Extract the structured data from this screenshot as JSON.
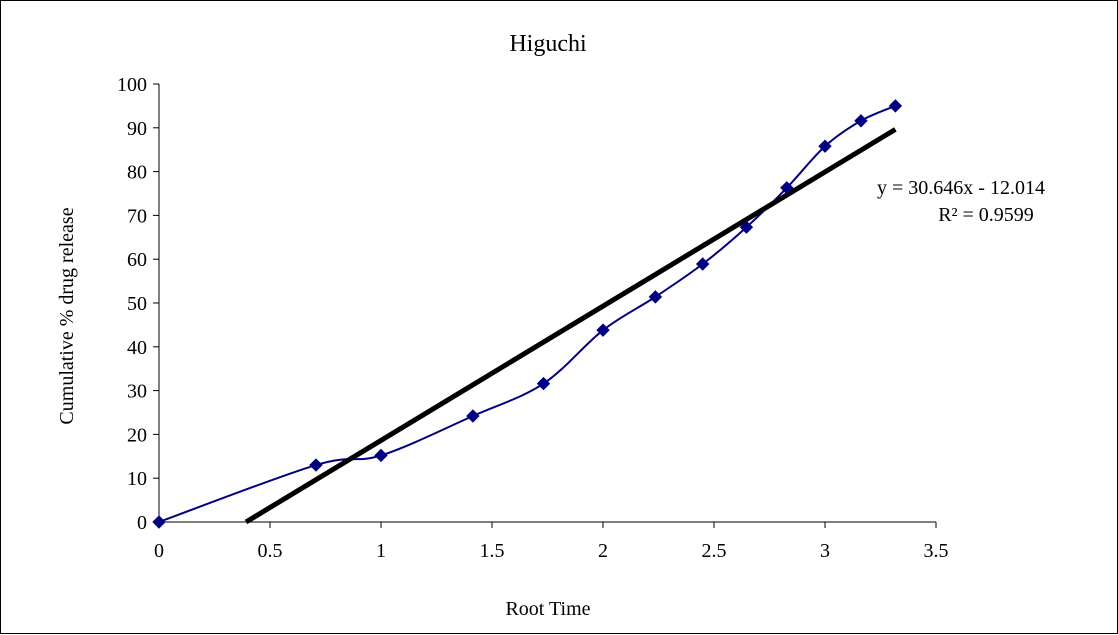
{
  "chart_data": {
    "type": "scatter",
    "title": "Higuchi",
    "xlabel": "Root Time",
    "ylabel": "Cumulative % drug release",
    "xlim": [
      0,
      3.5
    ],
    "ylim": [
      0,
      100
    ],
    "xticks": [
      0,
      0.5,
      1,
      1.5,
      2,
      2.5,
      3,
      3.5
    ],
    "yticks": [
      0,
      10,
      20,
      30,
      40,
      50,
      60,
      70,
      80,
      90,
      100
    ],
    "xtick_labels": [
      "0",
      "0.5",
      "1",
      "1.5",
      "2",
      "2.5",
      "3",
      "3.5"
    ],
    "ytick_labels": [
      "0",
      "10",
      "20",
      "30",
      "40",
      "50",
      "60",
      "70",
      "80",
      "90",
      "100"
    ],
    "grid": false,
    "series": [
      {
        "marker": "diamond",
        "smooth_line": true,
        "color": "#000080",
        "x": [
          0,
          0.707,
          1,
          1.414,
          1.732,
          2,
          2.236,
          2.449,
          2.646,
          2.828,
          3,
          3.162,
          3.317
        ],
        "y": [
          0,
          13,
          15.2,
          24.2,
          31.6,
          43.8,
          51.4,
          58.9,
          67.3,
          76.3,
          85.8,
          91.6,
          95
        ]
      }
    ],
    "trendline": {
      "type": "linear",
      "slope": 30.646,
      "intercept": -12.014,
      "color": "#000000",
      "equation_label": "y = 30.646x - 12.014",
      "r2_label": "R² = 0.9599"
    }
  }
}
